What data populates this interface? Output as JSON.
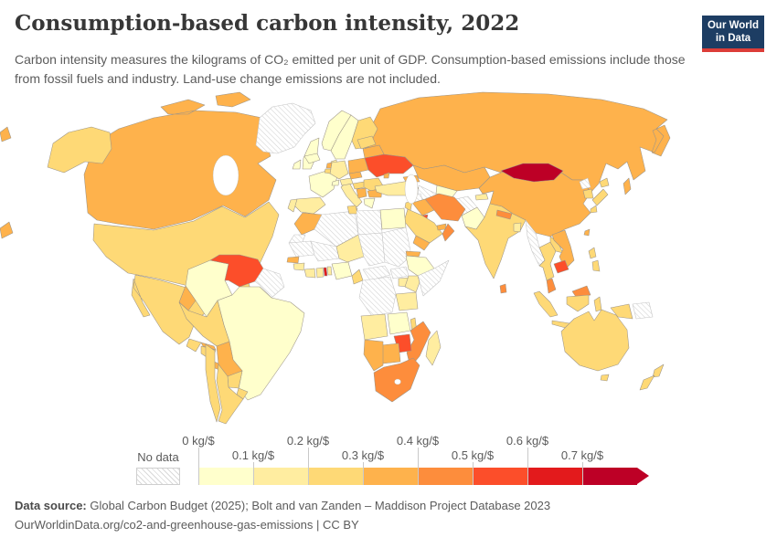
{
  "header": {
    "title": "Consumption-based carbon intensity, 2022",
    "subtitle": "Carbon intensity measures the kilograms of CO₂ emitted per unit of GDP. Consumption-based emissions include those from fossil fuels and industry. Land-use change emissions are not included.",
    "logo": {
      "line1": "Our World",
      "line2": "in Data",
      "bg_color": "#1d3d63",
      "accent_color": "#dc3d38"
    }
  },
  "footer": {
    "source_label": "Data source:",
    "source_text": " Global Carbon Budget (2025); Bolt and van Zanden – Maddison Project Database 2023",
    "link_text": "OurWorldinData.org/co2-and-greenhouse-gas-emissions | CC BY"
  },
  "chart_data": {
    "type": "heatmap",
    "subtype": "world-choropleth",
    "title": "Consumption-based carbon intensity, 2022",
    "unit": "kg CO₂ emitted per $ of GDP",
    "legend": {
      "position": "bottom",
      "no_data_label": "No data",
      "tick_labels": [
        "0 kg/$",
        "0.1 kg/$",
        "0.2 kg/$",
        "0.3 kg/$",
        "0.4 kg/$",
        "0.5 kg/$",
        "0.6 kg/$",
        "0.7 kg/$"
      ],
      "bin_colors": [
        "#FFFFCC",
        "#FFEDA0",
        "#FED976",
        "#FEB24C",
        "#FD8D3C",
        "#FC4E2A",
        "#E31A1C",
        "#BD0026"
      ],
      "bin_ranges_kg_per_dollar": [
        "0-0.1",
        "0.1-0.2",
        "0.2-0.3",
        "0.3-0.4",
        "0.4-0.5",
        "0.5-0.6",
        "0.6-0.7",
        "0.7+"
      ]
    },
    "countries": [
      {
        "id": "canada",
        "label": "Canada",
        "bin": 3
      },
      {
        "id": "united-states",
        "label": "United States",
        "bin": 2
      },
      {
        "id": "mexico",
        "label": "Mexico",
        "bin": 2
      },
      {
        "id": "greenland",
        "label": "Greenland",
        "bin": "no-data"
      },
      {
        "id": "iceland",
        "label": "Iceland",
        "bin": 0
      },
      {
        "id": "guatemala",
        "label": "Guatemala",
        "bin": 2
      },
      {
        "id": "honduras",
        "label": "Honduras",
        "bin": 3
      },
      {
        "id": "nicaragua",
        "label": "Nicaragua",
        "bin": 2
      },
      {
        "id": "panama",
        "label": "Panama",
        "bin": 3
      },
      {
        "id": "cuba",
        "label": "Cuba",
        "bin": 1
      },
      {
        "id": "haiti",
        "label": "Haiti",
        "bin": 5
      },
      {
        "id": "dominican-republic",
        "label": "Dominican Republic",
        "bin": 3
      },
      {
        "id": "jamaica",
        "label": "Jamaica",
        "bin": 3
      },
      {
        "id": "puerto-rico",
        "label": "Puerto Rico",
        "bin": 3
      },
      {
        "id": "colombia",
        "label": "Colombia",
        "bin": 0
      },
      {
        "id": "venezuela",
        "label": "Venezuela",
        "bin": 5
      },
      {
        "id": "guyana-suriname",
        "label": "Guyana and Suriname",
        "bin": "no-data"
      },
      {
        "id": "brazil",
        "label": "Brazil",
        "bin": 0
      },
      {
        "id": "ecuador",
        "label": "Ecuador",
        "bin": 3
      },
      {
        "id": "peru",
        "label": "Peru",
        "bin": 2
      },
      {
        "id": "bolivia",
        "label": "Bolivia",
        "bin": 3
      },
      {
        "id": "paraguay",
        "label": "Paraguay",
        "bin": 2
      },
      {
        "id": "uruguay",
        "label": "Uruguay",
        "bin": 2
      },
      {
        "id": "argentina",
        "label": "Argentina",
        "bin": 2
      },
      {
        "id": "chile",
        "label": "Chile",
        "bin": 2
      },
      {
        "id": "norway",
        "label": "Norway",
        "bin": 0
      },
      {
        "id": "sweden",
        "label": "Sweden",
        "bin": 0
      },
      {
        "id": "finland",
        "label": "Finland",
        "bin": 2
      },
      {
        "id": "denmark",
        "label": "Denmark",
        "bin": 1
      },
      {
        "id": "united-kingdom",
        "label": "United Kingdom",
        "bin": 0
      },
      {
        "id": "ireland",
        "label": "Ireland",
        "bin": 0
      },
      {
        "id": "france",
        "label": "France",
        "bin": 0
      },
      {
        "id": "spain",
        "label": "Spain",
        "bin": 1
      },
      {
        "id": "portugal",
        "label": "Portugal",
        "bin": 1
      },
      {
        "id": "germany",
        "label": "Germany",
        "bin": 1
      },
      {
        "id": "netherlands",
        "label": "Netherlands",
        "bin": 3
      },
      {
        "id": "belgium",
        "label": "Belgium",
        "bin": 2
      },
      {
        "id": "italy",
        "label": "Italy",
        "bin": 1
      },
      {
        "id": "switzerland",
        "label": "Switzerland",
        "bin": 0
      },
      {
        "id": "austria",
        "label": "Austria",
        "bin": 1
      },
      {
        "id": "czechia",
        "label": "Czechia",
        "bin": 3
      },
      {
        "id": "poland",
        "label": "Poland",
        "bin": 3
      },
      {
        "id": "hungary",
        "label": "Hungary",
        "bin": 2
      },
      {
        "id": "romania",
        "label": "Romania",
        "bin": 2
      },
      {
        "id": "bulgaria",
        "label": "Bulgaria",
        "bin": 3
      },
      {
        "id": "serbia",
        "label": "Serbia",
        "bin": 3
      },
      {
        "id": "greece",
        "label": "Greece",
        "bin": 0
      },
      {
        "id": "ukraine",
        "label": "Ukraine",
        "bin": 5
      },
      {
        "id": "belarus",
        "label": "Belarus",
        "bin": 3
      },
      {
        "id": "baltic-states",
        "label": "Baltic states",
        "bin": 2
      },
      {
        "id": "moldova",
        "label": "Moldova",
        "bin": 3
      },
      {
        "id": "russia",
        "label": "Russia",
        "bin": 3
      },
      {
        "id": "kazakhstan",
        "label": "Kazakhstan",
        "bin": 3
      },
      {
        "id": "uzbekistan",
        "label": "Uzbekistan",
        "bin": 0
      },
      {
        "id": "turkmenistan",
        "label": "Turkmenistan",
        "bin": "no-data"
      },
      {
        "id": "kyrgyzstan",
        "label": "Kyrgyzstan",
        "bin": 6
      },
      {
        "id": "tajikistan",
        "label": "Tajikistan",
        "bin": 1
      },
      {
        "id": "afghanistan",
        "label": "Afghanistan",
        "bin": "no-data"
      },
      {
        "id": "caucasus",
        "label": "Georgia and Azerbaijan",
        "bin": 3
      },
      {
        "id": "turkey",
        "label": "Turkey",
        "bin": 1
      },
      {
        "id": "syria",
        "label": "Syria",
        "bin": "no-data"
      },
      {
        "id": "iraq",
        "label": "Iraq",
        "bin": 3
      },
      {
        "id": "iran",
        "label": "Iran",
        "bin": 4
      },
      {
        "id": "kuwait",
        "label": "Kuwait",
        "bin": 5
      },
      {
        "id": "saudi-arabia",
        "label": "Saudi Arabia",
        "bin": 2
      },
      {
        "id": "yemen",
        "label": "Yemen",
        "bin": 3
      },
      {
        "id": "oman",
        "label": "Oman",
        "bin": 4
      },
      {
        "id": "uae",
        "label": "United Arab Emirates",
        "bin": 3
      },
      {
        "id": "jordan",
        "label": "Jordan",
        "bin": 2
      },
      {
        "id": "morocco",
        "label": "Morocco",
        "bin": 3
      },
      {
        "id": "algeria",
        "label": "Algeria",
        "bin": "no-data"
      },
      {
        "id": "tunisia",
        "label": "Tunisia",
        "bin": 2
      },
      {
        "id": "libya",
        "label": "Libya",
        "bin": "no-data"
      },
      {
        "id": "egypt",
        "label": "Egypt",
        "bin": 0
      },
      {
        "id": "western-sahara",
        "label": "Western Sahara",
        "bin": "no-data"
      },
      {
        "id": "mauritania",
        "label": "Mauritania",
        "bin": "no-data"
      },
      {
        "id": "mali",
        "label": "Mali",
        "bin": "no-data"
      },
      {
        "id": "niger",
        "label": "Niger",
        "bin": 1
      },
      {
        "id": "chad",
        "label": "Chad",
        "bin": "no-data"
      },
      {
        "id": "sudan",
        "label": "Sudan",
        "bin": "no-data"
      },
      {
        "id": "senegal",
        "label": "Senegal",
        "bin": 3
      },
      {
        "id": "guinea",
        "label": "Guinea",
        "bin": 1
      },
      {
        "id": "ivory-coast",
        "label": "Côte d'Ivoire",
        "bin": 1
      },
      {
        "id": "ghana",
        "label": "Ghana",
        "bin": 1
      },
      {
        "id": "togo",
        "label": "Togo",
        "bin": 6
      },
      {
        "id": "benin",
        "label": "Benin",
        "bin": 1
      },
      {
        "id": "nigeria",
        "label": "Nigeria",
        "bin": 0
      },
      {
        "id": "cameroon",
        "label": "Cameroon",
        "bin": 2
      },
      {
        "id": "central-african-republic",
        "label": "Central African Republic",
        "bin": "no-data"
      },
      {
        "id": "south-sudan",
        "label": "South Sudan",
        "bin": "no-data"
      },
      {
        "id": "ethiopia",
        "label": "Ethiopia",
        "bin": 0
      },
      {
        "id": "eritrea",
        "label": "Eritrea",
        "bin": 3
      },
      {
        "id": "somalia",
        "label": "Somalia",
        "bin": "no-data"
      },
      {
        "id": "kenya",
        "label": "Kenya",
        "bin": 1
      },
      {
        "id": "uganda",
        "label": "Uganda",
        "bin": 1
      },
      {
        "id": "drc",
        "label": "Democratic Republic of Congo",
        "bin": "no-data"
      },
      {
        "id": "tanzania",
        "label": "Tanzania",
        "bin": 1
      },
      {
        "id": "angola",
        "label": "Angola",
        "bin": 1
      },
      {
        "id": "zambia",
        "label": "Zambia",
        "bin": 0
      },
      {
        "id": "malawi",
        "label": "Malawi",
        "bin": 2
      },
      {
        "id": "mozambique",
        "label": "Mozambique",
        "bin": 4
      },
      {
        "id": "zimbabwe",
        "label": "Zimbabwe",
        "bin": 5
      },
      {
        "id": "botswana",
        "label": "Botswana",
        "bin": 3
      },
      {
        "id": "namibia",
        "label": "Namibia",
        "bin": 3
      },
      {
        "id": "south-africa",
        "label": "South Africa",
        "bin": 4
      },
      {
        "id": "madagascar",
        "label": "Madagascar",
        "bin": 1
      },
      {
        "id": "pakistan",
        "label": "Pakistan",
        "bin": 0
      },
      {
        "id": "india",
        "label": "India",
        "bin": 2
      },
      {
        "id": "nepal",
        "label": "Nepal",
        "bin": 4
      },
      {
        "id": "bangladesh",
        "label": "Bangladesh",
        "bin": 1
      },
      {
        "id": "sri-lanka",
        "label": "Sri Lanka",
        "bin": 4
      },
      {
        "id": "china",
        "label": "China",
        "bin": 3
      },
      {
        "id": "mongolia",
        "label": "Mongolia",
        "bin": 7
      },
      {
        "id": "north-korea",
        "label": "North Korea",
        "bin": "no-data"
      },
      {
        "id": "south-korea",
        "label": "South Korea",
        "bin": 2
      },
      {
        "id": "japan",
        "label": "Japan",
        "bin": 2
      },
      {
        "id": "taiwan",
        "label": "Taiwan",
        "bin": 3
      },
      {
        "id": "myanmar",
        "label": "Myanmar",
        "bin": "no-data"
      },
      {
        "id": "thailand",
        "label": "Thailand",
        "bin": 2
      },
      {
        "id": "laos",
        "label": "Laos",
        "bin": 2
      },
      {
        "id": "vietnam",
        "label": "Vietnam",
        "bin": 3
      },
      {
        "id": "cambodia",
        "label": "Cambodia",
        "bin": 5
      },
      {
        "id": "malaysia",
        "label": "Malaysia",
        "bin": 4
      },
      {
        "id": "indonesia",
        "label": "Indonesia",
        "bin": 2
      },
      {
        "id": "papua-new-guinea",
        "label": "Papua New Guinea",
        "bin": "no-data"
      },
      {
        "id": "philippines",
        "label": "Philippines",
        "bin": 2
      },
      {
        "id": "australia",
        "label": "Australia",
        "bin": 2
      },
      {
        "id": "new-zealand",
        "label": "New Zealand",
        "bin": 2
      }
    ]
  }
}
